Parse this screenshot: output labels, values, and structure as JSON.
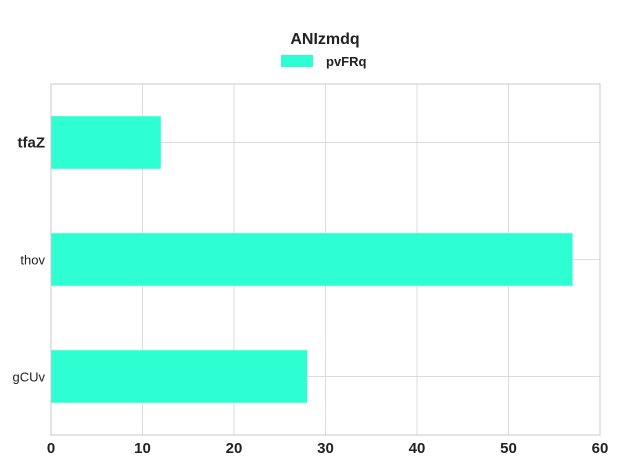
{
  "chart_data": {
    "type": "bar",
    "orientation": "horizontal",
    "title": "ANIzmdq",
    "categories": [
      "tfaZ",
      "thov",
      "gCUv"
    ],
    "series": [
      {
        "name": "pvFRq",
        "values": [
          12,
          57,
          28
        ]
      }
    ],
    "xlim": [
      0,
      60
    ],
    "xticks": [
      "0",
      "10",
      "20",
      "30",
      "40",
      "50",
      "60"
    ],
    "xlabel": "",
    "ylabel": "",
    "grid": true,
    "legend_position": "top-center",
    "bar_color": "#2dffd2",
    "emphasized_category": "tfaZ"
  }
}
